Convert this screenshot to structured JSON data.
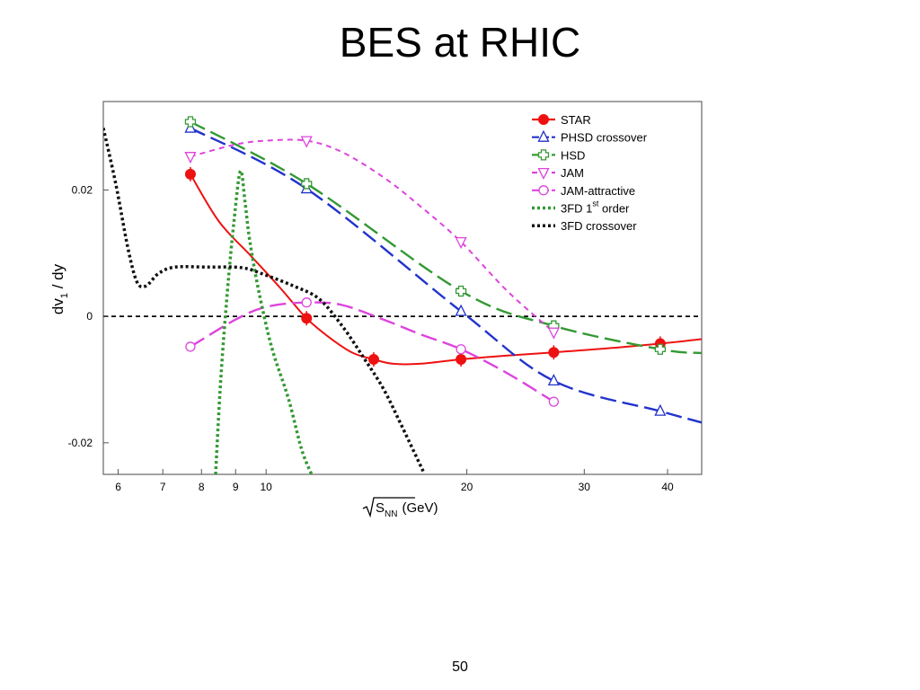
{
  "slide": {
    "title": "BES at RHIC",
    "page_number": "50"
  },
  "chart_data": {
    "type": "line",
    "xlabel": "√S_NN (GeV)",
    "xlabel_main": "S",
    "xlabel_sub": "NN",
    "xlabel_unit": "(GeV)",
    "ylabel": "dv_1 / dy",
    "ylabel_main": "dv",
    "ylabel_sub": "1",
    "ylabel_rest": " / dy",
    "xscale": "log",
    "xlim": [
      5.7,
      45
    ],
    "ylim": [
      -0.025,
      0.034
    ],
    "x_ticks": [
      6,
      7,
      8,
      9,
      10,
      20,
      30,
      40
    ],
    "y_ticks": [
      {
        "value": 0.02,
        "label": "0.02"
      },
      {
        "value": 0,
        "label": "0"
      },
      {
        "value": -0.02,
        "label": "-0.02"
      }
    ],
    "zero_line": true,
    "legend_position": "top-right",
    "series": [
      {
        "name": "STAR",
        "color": "#ee1111",
        "dash": "solid",
        "marker": "filled-circle",
        "points": [
          [
            7.7,
            0.0225
          ],
          [
            11.5,
            -0.0003
          ],
          [
            14.5,
            -0.0068
          ],
          [
            19.6,
            -0.0068
          ],
          [
            27,
            -0.0057
          ],
          [
            39,
            -0.0043
          ]
        ],
        "curve": [
          [
            7.7,
            0.0225
          ],
          [
            8.5,
            0.015
          ],
          [
            9.5,
            0.0095
          ],
          [
            10.5,
            0.0045
          ],
          [
            11.5,
            -0.0003
          ],
          [
            12.5,
            -0.0035
          ],
          [
            13.5,
            -0.0058
          ],
          [
            14.5,
            -0.0068
          ],
          [
            15.5,
            -0.0075
          ],
          [
            17,
            -0.0075
          ],
          [
            19.6,
            -0.0068
          ],
          [
            23,
            -0.0062
          ],
          [
            27,
            -0.0057
          ],
          [
            33,
            -0.005
          ],
          [
            39,
            -0.0043
          ],
          [
            45,
            -0.0036
          ]
        ]
      },
      {
        "name": "PHSD crossover",
        "color": "#2233cc",
        "dash": "long-dash",
        "marker": "open-triangle-up",
        "points": [
          [
            7.7,
            0.0298
          ],
          [
            11.5,
            0.0202
          ],
          [
            19.6,
            0.0008
          ],
          [
            27,
            -0.0102
          ],
          [
            39,
            -0.015
          ]
        ],
        "curve": [
          [
            7.7,
            0.0298
          ],
          [
            11.5,
            0.0202
          ],
          [
            19.6,
            0.0008
          ],
          [
            27,
            -0.0102
          ],
          [
            39,
            -0.015
          ],
          [
            45,
            -0.0168
          ]
        ]
      },
      {
        "name": "HSD",
        "color": "#339933",
        "dash": "long-dash",
        "marker": "open-cross",
        "points": [
          [
            7.7,
            0.0308
          ],
          [
            11.5,
            0.021
          ],
          [
            19.6,
            0.004
          ],
          [
            27,
            -0.0015
          ],
          [
            39,
            -0.0052
          ]
        ],
        "curve": [
          [
            7.7,
            0.0308
          ],
          [
            11.5,
            0.021
          ],
          [
            19.6,
            0.004
          ],
          [
            27,
            -0.0015
          ],
          [
            39,
            -0.0052
          ],
          [
            45,
            -0.0058
          ]
        ]
      },
      {
        "name": "JAM",
        "color": "#dd44dd",
        "dash": "short-dash",
        "marker": "open-triangle-down",
        "points": [
          [
            7.7,
            0.0253
          ],
          [
            11.5,
            0.0278
          ],
          [
            19.6,
            0.0118
          ],
          [
            27,
            -0.0025
          ]
        ],
        "curve": [
          [
            7.7,
            0.0253
          ],
          [
            9,
            0.0272
          ],
          [
            10,
            0.0278
          ],
          [
            11.5,
            0.0278
          ],
          [
            13,
            0.026
          ],
          [
            15,
            0.022
          ],
          [
            17,
            0.0175
          ],
          [
            19.6,
            0.0118
          ],
          [
            23,
            0.004
          ],
          [
            27,
            -0.0025
          ]
        ]
      },
      {
        "name": "JAM-attractive",
        "color": "#dd44dd",
        "dash": "long-dash",
        "marker": "open-circle",
        "points": [
          [
            7.7,
            -0.0048
          ],
          [
            11.5,
            0.0022
          ],
          [
            19.6,
            -0.0052
          ],
          [
            27,
            -0.0135
          ]
        ],
        "curve": [
          [
            7.7,
            -0.0048
          ],
          [
            9,
            -0.0005
          ],
          [
            10,
            0.0015
          ],
          [
            11.5,
            0.0022
          ],
          [
            13,
            0.0018
          ],
          [
            15,
            -0.0005
          ],
          [
            17,
            -0.0028
          ],
          [
            19.6,
            -0.0052
          ],
          [
            23,
            -0.009
          ],
          [
            27,
            -0.0135
          ]
        ]
      },
      {
        "name": "3FD 1st order",
        "name_pre": "3FD 1",
        "name_sup": "st",
        "name_post": " order",
        "color": "#339933",
        "dash": "dotted",
        "marker": "none",
        "points": [],
        "curve": [
          [
            8.4,
            -0.025
          ],
          [
            8.55,
            -0.01
          ],
          [
            8.75,
            0.004
          ],
          [
            8.95,
            0.015
          ],
          [
            9.15,
            0.023
          ],
          [
            9.3,
            0.018
          ],
          [
            9.45,
            0.012
          ],
          [
            9.75,
            0.004
          ],
          [
            10.2,
            -0.005
          ],
          [
            10.8,
            -0.013
          ],
          [
            11.3,
            -0.021
          ],
          [
            11.7,
            -0.025
          ]
        ]
      },
      {
        "name": "3FD crossover",
        "color": "#111111",
        "dash": "dotted",
        "marker": "none",
        "points": [],
        "curve": [
          [
            5.7,
            0.0298
          ],
          [
            5.95,
            0.021
          ],
          [
            6.2,
            0.011
          ],
          [
            6.4,
            0.0055
          ],
          [
            6.6,
            0.0048
          ],
          [
            6.9,
            0.0068
          ],
          [
            7.3,
            0.0078
          ],
          [
            8.2,
            0.0078
          ],
          [
            9.2,
            0.0077
          ],
          [
            10,
            0.0065
          ],
          [
            11,
            0.0048
          ],
          [
            12,
            0.0028
          ],
          [
            13,
            -0.0015
          ],
          [
            14,
            -0.0065
          ],
          [
            15,
            -0.0115
          ],
          [
            16,
            -0.0175
          ],
          [
            17.2,
            -0.0245
          ]
        ]
      }
    ]
  }
}
